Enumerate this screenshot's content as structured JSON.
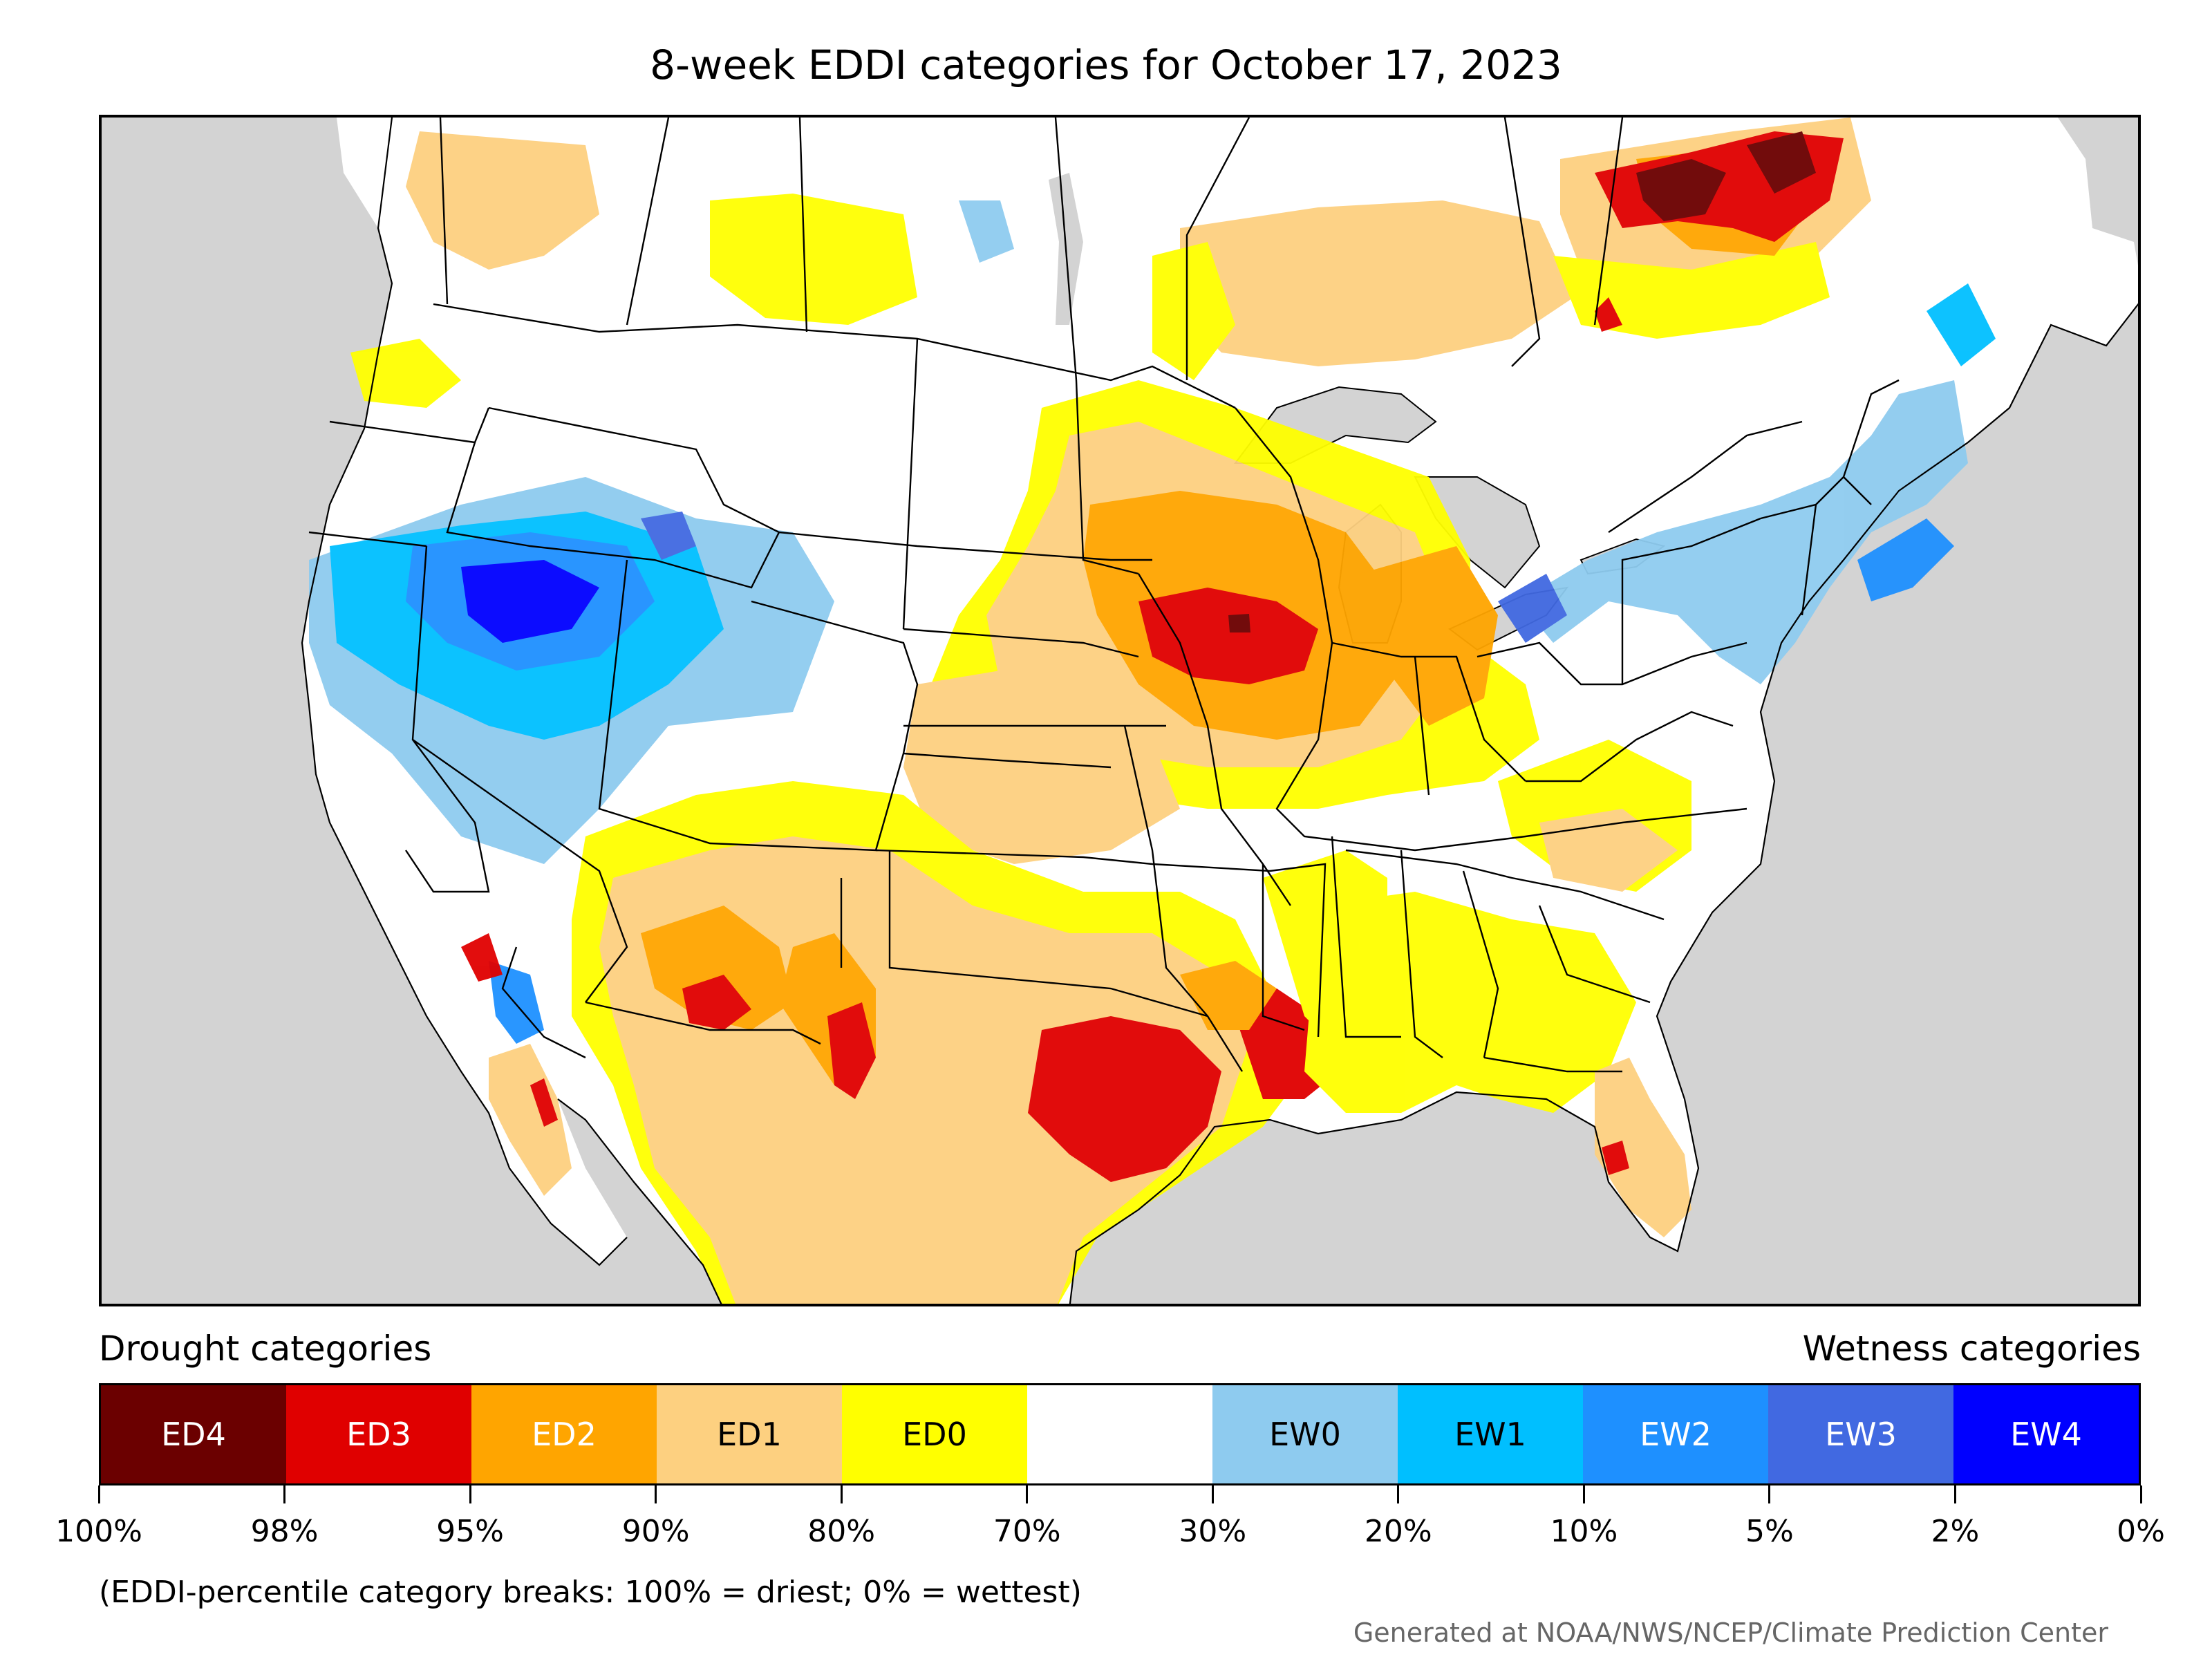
{
  "title": "8-week EDDI categories for October 17, 2023",
  "legend": {
    "drought_title": "Drought categories",
    "wetness_title": "Wetness categories",
    "categories": [
      {
        "label": "ED4",
        "color": "#6b0000",
        "text": "light"
      },
      {
        "label": "ED3",
        "color": "#e00000",
        "text": "light"
      },
      {
        "label": "ED2",
        "color": "#ffa500",
        "text": "light"
      },
      {
        "label": "ED1",
        "color": "#fdd080",
        "text": "dark"
      },
      {
        "label": "ED0",
        "color": "#ffff00",
        "text": "dark"
      },
      {
        "label": "",
        "color": "#ffffff",
        "text": "dark"
      },
      {
        "label": "EW0",
        "color": "#8ecbef",
        "text": "dark"
      },
      {
        "label": "EW1",
        "color": "#00bfff",
        "text": "dark"
      },
      {
        "label": "EW2",
        "color": "#1e90ff",
        "text": "light"
      },
      {
        "label": "EW3",
        "color": "#4169e1",
        "text": "light"
      },
      {
        "label": "EW4",
        "color": "#0000ff",
        "text": "light"
      }
    ],
    "ticks": [
      "100%",
      "98%",
      "95%",
      "90%",
      "80%",
      "70%",
      "30%",
      "20%",
      "10%",
      "5%",
      "2%",
      "0%"
    ]
  },
  "note": "(EDDI-percentile category breaks: 100% = driest; 0% = wettest)",
  "credit": "Generated at NOAA/NWS/NCEP/Climate Prediction Center",
  "colors": {
    "ocean": "#d3d3d3",
    "land": "#ffffff",
    "ED4": "#6b0000",
    "ED3": "#e00000",
    "ED2": "#ffa500",
    "ED1": "#fdd080",
    "ED0": "#ffff00",
    "EW0": "#8ecbef",
    "EW1": "#00bfff",
    "EW2": "#1e90ff",
    "EW3": "#4169e1",
    "EW4": "#0000ff"
  }
}
